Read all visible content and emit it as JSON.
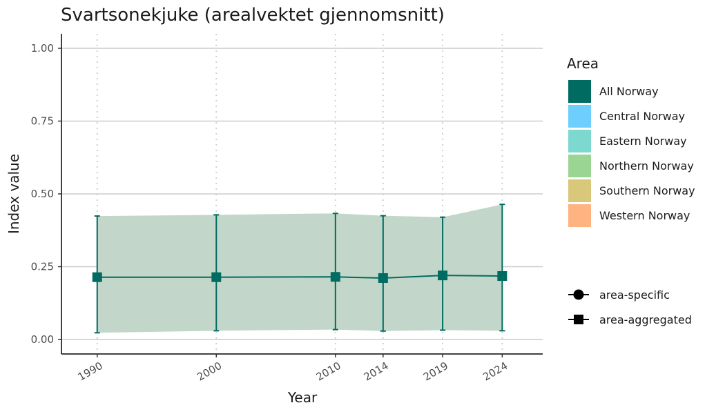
{
  "chart_data": {
    "type": "line",
    "title": "Svartsonekjuke (arealvektet gjennomsnitt)",
    "xlabel": "Year",
    "ylabel": "Index value",
    "x": [
      1990,
      2000,
      2010,
      2014,
      2019,
      2024
    ],
    "x_tick_labels": [
      "1990",
      "2000",
      "2010",
      "2014",
      "2019",
      "2024"
    ],
    "ylim": [
      0,
      1
    ],
    "y_ticks": [
      0,
      0.25,
      0.5,
      0.75,
      1
    ],
    "y_tick_labels": [
      "0.00",
      "0.25",
      "0.50",
      "0.75",
      "1.00"
    ],
    "grid": "horizontal major solid; vertical dotted at data years",
    "series": [
      {
        "name": "All Norway",
        "type": "area-aggregated",
        "color": "#006b61",
        "ribbon_color": "#c2d7c9",
        "values": [
          0.214,
          0.214,
          0.215,
          0.211,
          0.22,
          0.218
        ],
        "lower": [
          0.023,
          0.03,
          0.034,
          0.029,
          0.032,
          0.03
        ],
        "upper": [
          0.424,
          0.428,
          0.433,
          0.425,
          0.42,
          0.464
        ]
      }
    ],
    "legend": {
      "position": "right",
      "title": "Area",
      "areas": [
        {
          "label": "All Norway",
          "color": "#006b61"
        },
        {
          "label": "Central Norway",
          "color": "#6ecfff"
        },
        {
          "label": "Eastern Norway",
          "color": "#7dd8d0"
        },
        {
          "label": "Northern Norway",
          "color": "#9bd594"
        },
        {
          "label": "Southern Norway",
          "color": "#d9c77a"
        },
        {
          "label": "Western Norway",
          "color": "#ffb380"
        }
      ],
      "shapes": [
        {
          "label": "area-specific",
          "shape": "circle"
        },
        {
          "label": "area-aggregated",
          "shape": "square"
        }
      ]
    }
  }
}
